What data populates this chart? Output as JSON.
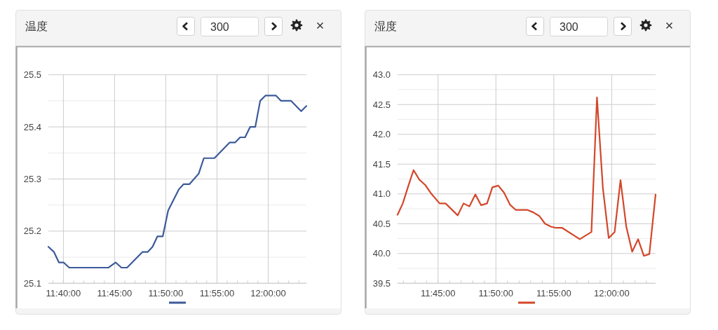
{
  "chart_data": [
    {
      "type": "line",
      "title": "温度",
      "annotations": [
        "300"
      ],
      "x": [
        11.6423,
        11.6514,
        11.6594,
        11.667,
        11.6762,
        11.7402,
        11.7517,
        11.7612,
        11.7703,
        11.7953,
        11.8038,
        11.8118,
        11.8198,
        11.8285,
        11.8373,
        11.8545,
        11.8622,
        11.8717,
        11.8868,
        11.8953,
        11.9125,
        11.9372,
        11.946,
        11.9543,
        11.9623,
        11.9707,
        11.979,
        11.987,
        11.9955,
        12.0127,
        12.021,
        12.0373,
        12.0537,
        12.0622
      ],
      "series": [
        {
          "color": "#3c5a9a",
          "values": [
            25.17,
            25.16,
            25.14,
            25.14,
            25.13,
            25.13,
            25.14,
            25.13,
            25.13,
            25.16,
            25.16,
            25.17,
            25.19,
            25.19,
            25.24,
            25.28,
            25.29,
            25.29,
            25.31,
            25.34,
            25.34,
            25.37,
            25.37,
            25.38,
            25.38,
            25.4,
            25.4,
            25.45,
            25.46,
            25.46,
            25.45,
            25.45,
            25.43,
            25.44
          ]
        }
      ],
      "xlim": [
        11.6423,
        12.0622
      ],
      "xticks": [
        {
          "value": 11.65,
          "label": null
        },
        {
          "value": 11.6667,
          "label": "11:40:00"
        },
        {
          "value": 11.6833,
          "label": null
        },
        {
          "value": 11.7,
          "label": null
        },
        {
          "value": 11.7167,
          "label": null
        },
        {
          "value": 11.7333,
          "label": null
        },
        {
          "value": 11.75,
          "label": "11:45:00"
        },
        {
          "value": 11.7667,
          "label": null
        },
        {
          "value": 11.7833,
          "label": null
        },
        {
          "value": 11.8,
          "label": null
        },
        {
          "value": 11.8167,
          "label": null
        },
        {
          "value": 11.8333,
          "label": "11:50:00"
        },
        {
          "value": 11.85,
          "label": null
        },
        {
          "value": 11.8667,
          "label": null
        },
        {
          "value": 11.8833,
          "label": null
        },
        {
          "value": 11.9,
          "label": null
        },
        {
          "value": 11.9167,
          "label": "11:55:00"
        },
        {
          "value": 11.9333,
          "label": null
        },
        {
          "value": 11.95,
          "label": null
        },
        {
          "value": 11.9667,
          "label": null
        },
        {
          "value": 11.9833,
          "label": null
        },
        {
          "value": 12,
          "label": "12:00:00"
        },
        {
          "value": 12.0167,
          "label": null
        },
        {
          "value": 12.0333,
          "label": null
        },
        {
          "value": 12.05,
          "label": null
        }
      ],
      "ylim": [
        25.1,
        25.5
      ],
      "yticks": [
        25.1,
        {
          "value": 25.15,
          "label": null
        },
        25.2,
        {
          "value": 25.25,
          "label": null
        },
        25.3,
        {
          "value": 25.35,
          "label": null
        },
        25.4,
        {
          "value": 25.45,
          "label": null
        },
        25.5
      ],
      "grid": true
    },
    {
      "type": "line",
      "title": "湿度",
      "annotations": [
        "300"
      ],
      "x": [
        11.6917,
        11.6992,
        11.7068,
        11.7147,
        11.723,
        11.7315,
        11.7405,
        11.7523,
        11.7608,
        11.7783,
        11.7867,
        11.7952,
        11.8037,
        11.812,
        11.8205,
        11.8282,
        11.8367,
        11.845,
        11.8535,
        11.862,
        11.8788,
        11.8872,
        11.8957,
        11.904,
        11.9125,
        11.9198,
        11.9287,
        11.954,
        11.9708,
        11.9788,
        11.9873,
        11.9957,
        12.0042,
        12.0127,
        12.021,
        12.0295,
        12.038,
        12.0463,
        12.0542,
        12.0632
      ],
      "series": [
        {
          "color": "#d3472a",
          "values": [
            40.65,
            40.84,
            41.12,
            41.4,
            41.24,
            41.15,
            41.0,
            40.84,
            40.84,
            40.64,
            40.84,
            40.79,
            40.99,
            40.81,
            40.84,
            41.11,
            41.14,
            41.02,
            40.82,
            40.73,
            40.73,
            40.69,
            40.63,
            40.5,
            40.45,
            40.43,
            40.43,
            40.24,
            40.36,
            42.62,
            41.1,
            40.26,
            40.36,
            41.23,
            40.45,
            40.03,
            40.24,
            39.96,
            39.99,
            40.99
          ]
        }
      ],
      "xlim": [
        11.6917,
        12.0632
      ],
      "xticks": [
        {
          "value": 11.7,
          "label": null
        },
        {
          "value": 11.7167,
          "label": null
        },
        {
          "value": 11.7333,
          "label": null
        },
        {
          "value": 11.75,
          "label": "11:45:00"
        },
        {
          "value": 11.7667,
          "label": null
        },
        {
          "value": 11.7833,
          "label": null
        },
        {
          "value": 11.8,
          "label": null
        },
        {
          "value": 11.8167,
          "label": null
        },
        {
          "value": 11.8333,
          "label": "11:50:00"
        },
        {
          "value": 11.85,
          "label": null
        },
        {
          "value": 11.8667,
          "label": null
        },
        {
          "value": 11.8833,
          "label": null
        },
        {
          "value": 11.9,
          "label": null
        },
        {
          "value": 11.9167,
          "label": "11:55:00"
        },
        {
          "value": 11.9333,
          "label": null
        },
        {
          "value": 11.95,
          "label": null
        },
        {
          "value": 11.9667,
          "label": null
        },
        {
          "value": 11.9833,
          "label": null
        },
        {
          "value": 12,
          "label": "12:00:00"
        },
        {
          "value": 12.0167,
          "label": null
        },
        {
          "value": 12.0333,
          "label": null
        },
        {
          "value": 12.05,
          "label": null
        }
      ],
      "ylim": [
        39.5,
        43
      ],
      "yticks": [
        39.5,
        {
          "value": 39.75,
          "label": null
        },
        {
          "value": 40,
          "label": "40.0"
        },
        {
          "value": 40.25,
          "label": null
        },
        40.5,
        {
          "value": 40.75,
          "label": null
        },
        {
          "value": 41,
          "label": "41.0"
        },
        {
          "value": 41.25,
          "label": null
        },
        41.5,
        {
          "value": 41.75,
          "label": null
        },
        {
          "value": 42,
          "label": "42.0"
        },
        {
          "value": 42.25,
          "label": null
        },
        42.5,
        {
          "value": 42.75,
          "label": null
        },
        {
          "value": 43,
          "label": "43.0"
        }
      ],
      "grid": true
    }
  ]
}
